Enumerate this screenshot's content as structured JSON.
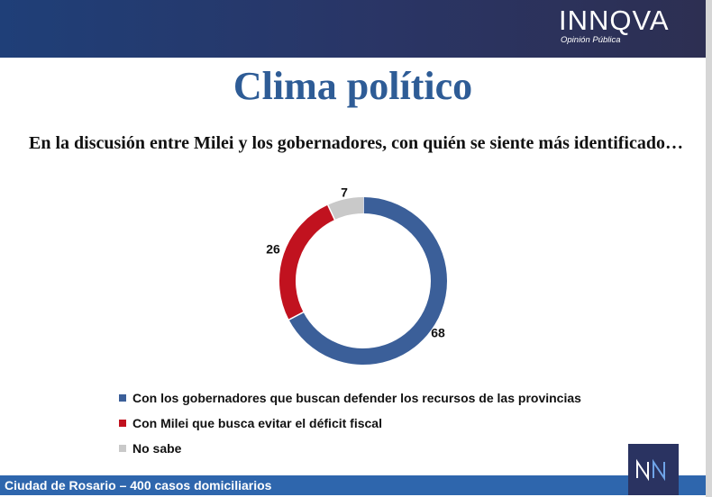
{
  "header": {
    "logo_text": "INNQVA",
    "logo_subtitle": "Opinión Pública"
  },
  "title": "Clima político",
  "question": "En la discusión entre Milei y los gobernadores, con quién se siente más identificado…",
  "chart_data": {
    "type": "pie",
    "subtype": "donut",
    "categories": [
      "Con los gobernadores que buscan defender los recursos de las provincias",
      "Con Milei que busca evitar el déficit fiscal",
      "No sabe"
    ],
    "values": [
      68,
      26,
      7
    ],
    "data_labels": [
      "68",
      "26",
      "7"
    ],
    "colors": [
      "#3b5f99",
      "#c1121f",
      "#c9c9c9"
    ],
    "legend_position": "bottom"
  },
  "legend": [
    {
      "label": "Con los gobernadores que buscan defender los recursos de las provincias",
      "color": "#3b5f99"
    },
    {
      "label": "Con Milei que busca evitar el déficit fiscal",
      "color": "#c1121f"
    },
    {
      "label": "No sabe",
      "color": "#c9c9c9"
    }
  ],
  "footer": {
    "text": "Ciudad de Rosario – 400 casos domiciliarios"
  },
  "badge": {
    "icon": "nn-logo-icon"
  }
}
